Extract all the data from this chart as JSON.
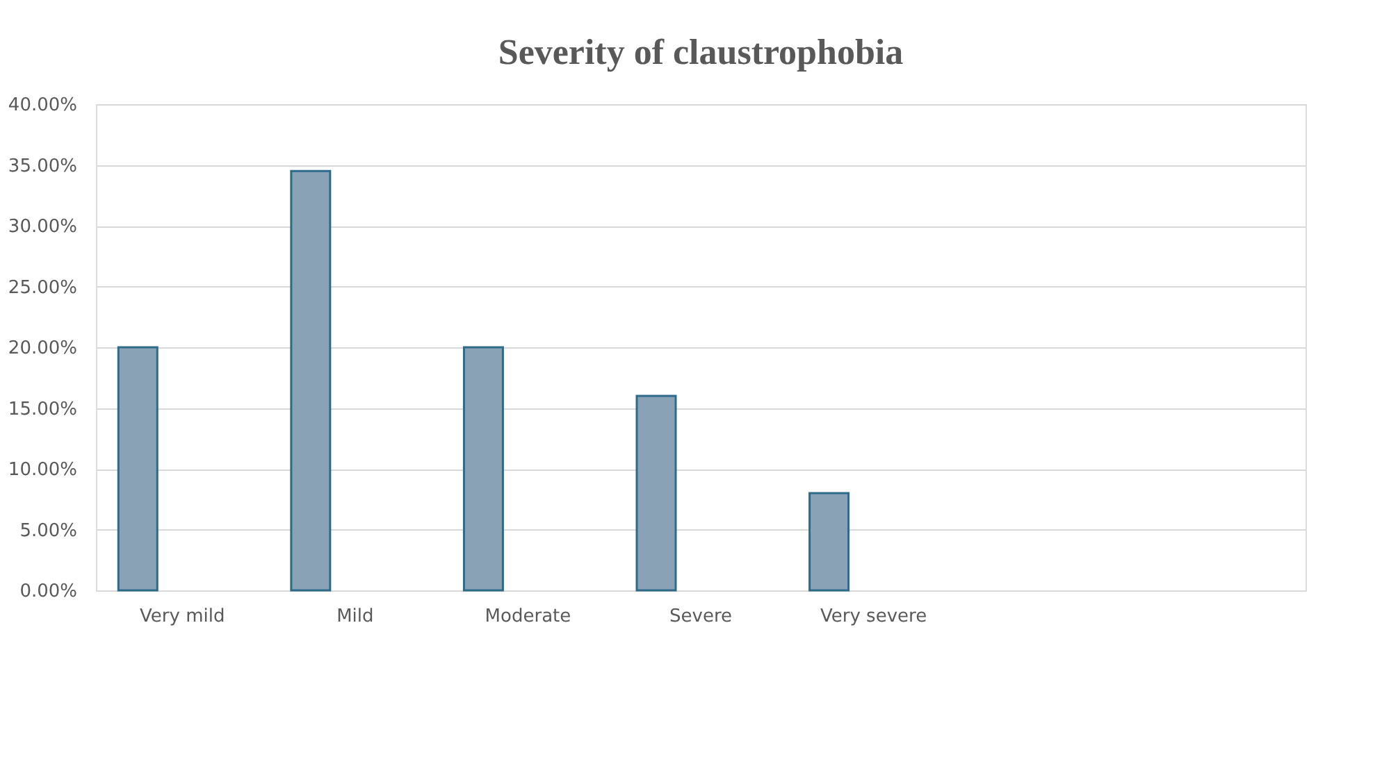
{
  "chart_data": {
    "type": "bar",
    "title": "Severity  of claustrophobia",
    "categories": [
      "Very mild",
      "Mild",
      "Moderate",
      "Severe",
      "Very severe",
      null,
      null
    ],
    "values": [
      20,
      34.5,
      20,
      16,
      8,
      null,
      null
    ],
    "color": "#8aa2b5",
    "ylim": [
      0,
      40
    ],
    "yticks": [
      {
        "value": 0,
        "label": "0.00%"
      },
      {
        "value": 5,
        "label": "5.00%"
      },
      {
        "value": 10,
        "label": "10.00%"
      },
      {
        "value": 15,
        "label": "15.00%"
      },
      {
        "value": 20,
        "label": "20.00%"
      },
      {
        "value": 25,
        "label": "25.00%"
      },
      {
        "value": 30,
        "label": "30.00%"
      },
      {
        "value": 35,
        "label": "35.00%"
      },
      {
        "value": 40,
        "label": "40.00%"
      }
    ],
    "grid": "y"
  }
}
